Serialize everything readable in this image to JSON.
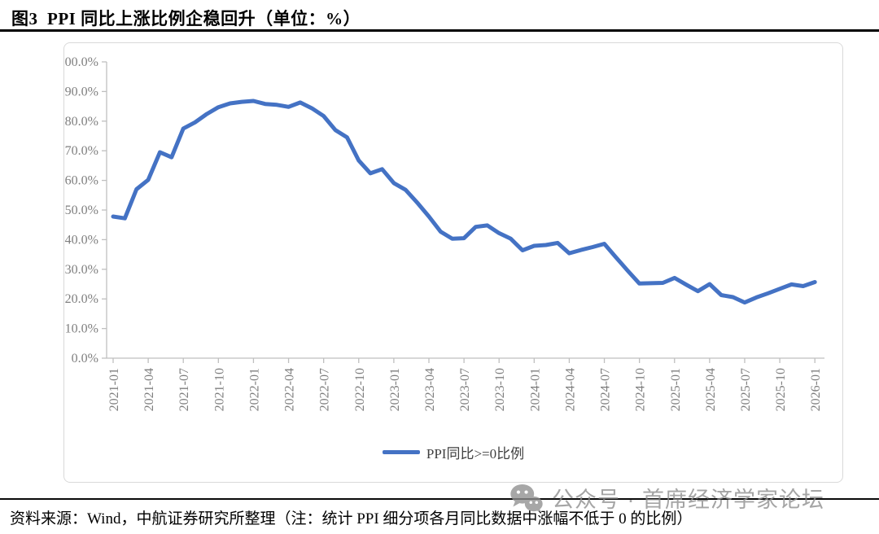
{
  "figure": {
    "title": "图3  PPI 同比上涨比例企稳回升（单位：%）",
    "source_note": "资料来源：Wind，中航证券研究所整理（注：统计 PPI 细分项各月同比数据中涨幅不低于 0 的比例）",
    "watermark_text": "公众号 · 首席经济学家论坛"
  },
  "chart_data": {
    "type": "line",
    "title": "",
    "xlabel": "",
    "ylabel": "",
    "ylim": [
      0,
      100
    ],
    "y_tick_step": 10,
    "y_tick_labels": [
      "0.0%",
      "10.0%",
      "20.0%",
      "30.0%",
      "40.0%",
      "50.0%",
      "60.0%",
      "70.0%",
      "80.0%",
      "90.0%",
      "100.0%"
    ],
    "grid": "off",
    "legend_position": "bottom-center",
    "x": [
      "2021-01",
      "2021-02",
      "2021-03",
      "2021-04",
      "2021-05",
      "2021-06",
      "2021-07",
      "2021-08",
      "2021-09",
      "2021-10",
      "2021-11",
      "2021-12",
      "2022-01",
      "2022-02",
      "2022-03",
      "2022-04",
      "2022-05",
      "2022-06",
      "2022-07",
      "2022-08",
      "2022-09",
      "2022-10",
      "2022-11",
      "2022-12",
      "2023-01",
      "2023-02",
      "2023-03",
      "2023-04",
      "2023-05",
      "2023-06",
      "2023-07",
      "2023-08",
      "2023-09",
      "2023-10",
      "2023-11",
      "2023-12",
      "2024-01",
      "2024-02",
      "2024-03",
      "2024-04",
      "2024-05",
      "2024-06",
      "2024-07",
      "2024-08",
      "2024-09",
      "2024-10",
      "2024-11",
      "2024-12",
      "2025-01",
      "2025-02",
      "2025-03",
      "2025-04",
      "2025-05",
      "2025-06",
      "2025-07",
      "2025-08",
      "2025-09",
      "2025-10",
      "2025-11",
      "2025-12",
      "2026-01"
    ],
    "x_tick_labels": [
      "2021-01",
      "2021-04",
      "2021-07",
      "2021-10",
      "2022-01",
      "2022-04",
      "2022-07",
      "2022-10",
      "2023-01",
      "2023-04",
      "2023-07",
      "2023-10",
      "2024-01",
      "2024-04",
      "2024-07",
      "2024-10",
      "2025-01",
      "2025-04",
      "2025-07",
      "2025-10",
      "2026-01"
    ],
    "series": [
      {
        "name": "PPI同比>=0比例",
        "color": "#4472C4",
        "values": [
          47.8,
          47.2,
          57.0,
          60.2,
          69.5,
          67.8,
          77.5,
          79.6,
          82.4,
          84.7,
          86.0,
          86.5,
          86.8,
          85.8,
          85.5,
          84.8,
          86.3,
          84.3,
          81.7,
          77.0,
          74.5,
          66.7,
          62.4,
          63.8,
          59.1,
          56.8,
          52.5,
          47.8,
          42.7,
          40.3,
          40.5,
          44.3,
          44.8,
          42.2,
          40.3,
          36.4,
          37.9,
          38.2,
          38.9,
          35.4,
          36.5,
          37.5,
          38.6,
          34.0,
          29.5,
          25.2,
          25.3,
          25.4,
          27.1,
          24.8,
          22.6,
          25.0,
          21.3,
          20.6,
          18.8,
          20.5,
          21.9,
          23.4,
          24.9,
          24.3,
          25.7
        ]
      }
    ]
  },
  "colors": {
    "line_blue": "#4472C4",
    "axis_gray": "#bfbfbf",
    "tick_label_gray": "#7f7f7f",
    "legend_text": "#404040",
    "frame_border": "#d9d9d9",
    "watermark_gray": "#8c8c8c"
  }
}
